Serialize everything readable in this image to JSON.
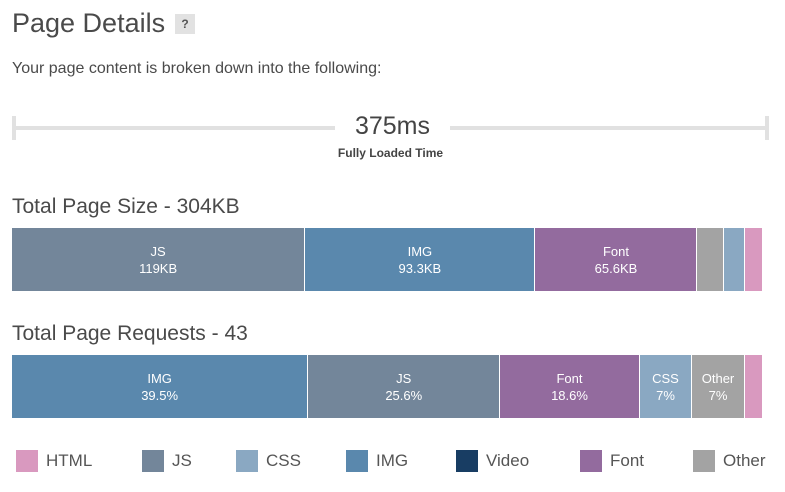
{
  "header": {
    "title": "Page Details",
    "help": "?"
  },
  "subtitle": "Your page content is broken down into the following:",
  "timeline": {
    "value": "375ms",
    "label": "Fully Loaded Time"
  },
  "colors": {
    "html": "#d999bf",
    "js": "#73869a",
    "css": "#8aa8c2",
    "img": "#5a88ad",
    "video": "#183d63",
    "font": "#936b9e",
    "other": "#a3a3a3"
  },
  "size": {
    "title": "Total Page Size - 304KB",
    "segments": [
      {
        "key": "js",
        "label": "JS",
        "value": "119KB",
        "share": 39.1
      },
      {
        "key": "img",
        "label": "IMG",
        "value": "93.3KB",
        "share": 30.7
      },
      {
        "key": "font",
        "label": "Font",
        "value": "65.6KB",
        "share": 21.6
      },
      {
        "key": "other",
        "label": "",
        "value": "",
        "share": 3.6
      },
      {
        "key": "css",
        "label": "",
        "value": "",
        "share": 2.8
      },
      {
        "key": "html",
        "label": "",
        "value": "",
        "share": 2.2
      }
    ]
  },
  "requests": {
    "title": "Total Page Requests - 43",
    "segments": [
      {
        "key": "img",
        "label": "IMG",
        "value": "39.5%",
        "share": 39.5
      },
      {
        "key": "js",
        "label": "JS",
        "value": "25.6%",
        "share": 25.6
      },
      {
        "key": "font",
        "label": "Font",
        "value": "18.6%",
        "share": 18.6
      },
      {
        "key": "css",
        "label": "CSS",
        "value": "7%",
        "share": 7.0
      },
      {
        "key": "other",
        "label": "Other",
        "value": "7%",
        "share": 7.0
      },
      {
        "key": "html",
        "label": "",
        "value": "",
        "share": 2.3
      }
    ]
  },
  "legend": [
    {
      "key": "html",
      "label": "HTML"
    },
    {
      "key": "js",
      "label": "JS"
    },
    {
      "key": "css",
      "label": "CSS"
    },
    {
      "key": "img",
      "label": "IMG"
    },
    {
      "key": "video",
      "label": "Video"
    },
    {
      "key": "font",
      "label": "Font"
    },
    {
      "key": "other",
      "label": "Other"
    }
  ]
}
